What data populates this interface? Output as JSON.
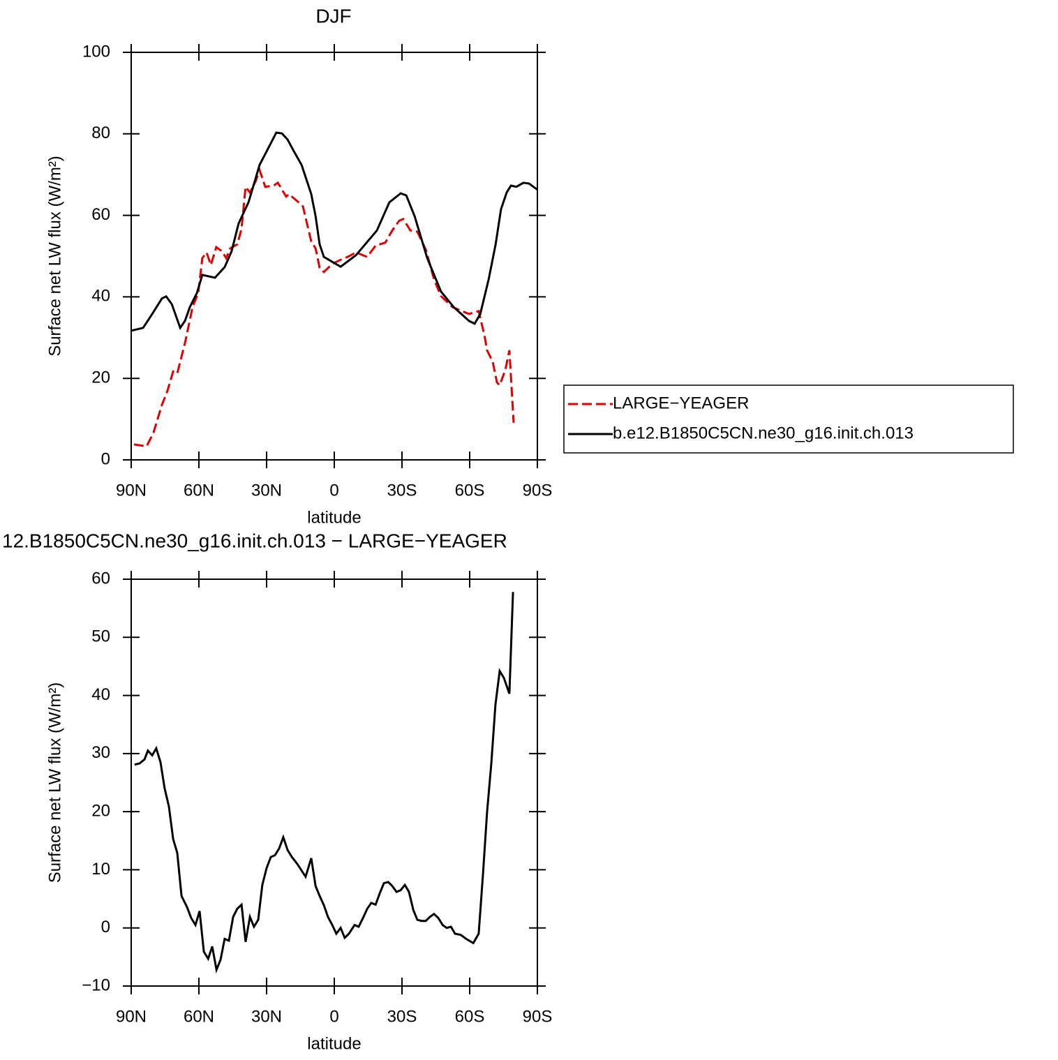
{
  "chart_data": [
    {
      "type": "line",
      "title": "DJF",
      "x_label": "latitude",
      "y_label": "Surface net LW flux (W/m²)",
      "xlim": [
        90,
        -90
      ],
      "xticks": [
        {
          "value": 90,
          "label": "90N"
        },
        {
          "value": 60,
          "label": "60N"
        },
        {
          "value": 30,
          "label": "30N"
        },
        0,
        {
          "value": -30,
          "label": "30S"
        },
        {
          "value": -60,
          "label": "60S"
        },
        {
          "value": -90,
          "label": "90S"
        }
      ],
      "ylim": [
        0,
        100
      ],
      "yticks": [
        0,
        20,
        40,
        60,
        80,
        100
      ],
      "legend": "right",
      "series": [
        {
          "name": "LARGE−YEAGER",
          "color": "#e00000",
          "dashed": true,
          "x": [
            88.8,
            83.2,
            80.1,
            76.4,
            73.9,
            71.4,
            69.6,
            65.9,
            62.8,
            60.3,
            58.5,
            56.6,
            54.7,
            52.3,
            49.8,
            47.9,
            46.1,
            43,
            41.1,
            39.3,
            37.4,
            34.9,
            33.1,
            30.6,
            26.9,
            25,
            23.2,
            21.3,
            20.1,
            16.4,
            13.9,
            10.2,
            8.3,
            6.5,
            4.6,
            0.9,
            -2.8,
            -5.9,
            -9.6,
            -14.6,
            -18.3,
            -22.6,
            -25.7,
            -28.8,
            -30.6,
            -33.7,
            -36.8,
            -40.6,
            -44.2,
            -47.3,
            -52.3,
            -59.7,
            -64,
            -66.5,
            -67.7,
            -70.2,
            -72.1,
            -73.3,
            -75.8,
            -77.6,
            -79.5
          ],
          "values": [
            3.8,
            3.3,
            6.7,
            13.5,
            17,
            21.7,
            21.2,
            29.3,
            37.5,
            40.9,
            49.5,
            50.9,
            47.8,
            52.2,
            51.2,
            49.5,
            51.9,
            52.9,
            56.7,
            67,
            65.6,
            68.3,
            71.1,
            67,
            67.3,
            68,
            66.3,
            64.6,
            65.2,
            63.5,
            62.2,
            53.6,
            51.9,
            47.1,
            46.1,
            48.1,
            49.1,
            49.8,
            50.9,
            49.8,
            52.6,
            53.3,
            56.3,
            58.7,
            59.1,
            56.3,
            56,
            51.5,
            44.3,
            40.2,
            37.5,
            35.8,
            36.5,
            30.7,
            26.9,
            24.1,
            19,
            18.3,
            22.1,
            26.9,
            9.1
          ]
        },
        {
          "name": "b.e12.B1850C5CN.ne30_g16.init.ch.013",
          "color": "#000000",
          "dashed": false,
          "x": [
            90,
            84.7,
            80.7,
            76.4,
            74.5,
            72,
            68.3,
            66.2,
            64,
            60.9,
            58.5,
            55.4,
            52.9,
            48.6,
            45.5,
            42.4,
            38,
            33.1,
            28.1,
            25.7,
            23.2,
            20.7,
            18.2,
            14.5,
            10.2,
            8.3,
            6.5,
            4.6,
            -2.8,
            -9.6,
            -18.9,
            -24.4,
            -29.4,
            -31.9,
            -35.6,
            -41.2,
            -47.3,
            -52.9,
            -59.7,
            -62.2,
            -64.7,
            -68.4,
            -71.5,
            -73.9,
            -76.4,
            -78.3,
            -80.7,
            -83.8,
            -86.3,
            -90
          ],
          "values": [
            31.7,
            32.4,
            35.8,
            39.6,
            40.1,
            38.2,
            32.4,
            34.1,
            37.5,
            40.9,
            45.4,
            45,
            44.7,
            47.3,
            51.2,
            58,
            63.2,
            72.4,
            77.7,
            80.3,
            80.1,
            78.6,
            76,
            72.4,
            65.2,
            59.8,
            52.9,
            49.8,
            47.4,
            50.2,
            56.3,
            63.2,
            65.4,
            64.9,
            59.8,
            49.5,
            41.3,
            37.5,
            34.1,
            33.4,
            35.8,
            44.3,
            52.9,
            61.5,
            65.6,
            67.3,
            67,
            68,
            67.8,
            66.3
          ]
        }
      ]
    },
    {
      "type": "line",
      "title": "12.B1850C5CN.ne30_g16.init.ch.013 − LARGE−YEAGER",
      "x_label": "latitude",
      "y_label": "Surface net LW flux (W/m²)",
      "xlim": [
        90,
        -90
      ],
      "xticks": [
        {
          "value": 90,
          "label": "90N"
        },
        {
          "value": 60,
          "label": "60N"
        },
        {
          "value": 30,
          "label": "30N"
        },
        0,
        {
          "value": -30,
          "label": "30S"
        },
        {
          "value": -60,
          "label": "60S"
        },
        {
          "value": -90,
          "label": "90S"
        }
      ],
      "ylim": [
        -10,
        60
      ],
      "yticks": [
        {
          "value": -10,
          "label": "−10"
        },
        0,
        10,
        20,
        30,
        40,
        50,
        60
      ],
      "series": [
        {
          "color": "#000000",
          "dashed": false,
          "x": [
            88.5,
            86.3,
            84.1,
            82.6,
            80.7,
            78.9,
            77,
            75.2,
            73.3,
            71.4,
            69.6,
            67.7,
            65.3,
            63.4,
            61.5,
            59.7,
            57.8,
            55.9,
            54.1,
            52.2,
            50.4,
            48.6,
            46.7,
            44.8,
            43,
            41.1,
            39.3,
            37.4,
            35.6,
            33.7,
            31.9,
            30,
            28.1,
            26.3,
            24.4,
            22.6,
            20.7,
            18.8,
            16.4,
            12.7,
            10.2,
            8.3,
            6.5,
            4.6,
            2.8,
            0.9,
            -0.9,
            -2.8,
            -4.6,
            -6.5,
            -9,
            -10.8,
            -12.7,
            -14.6,
            -16.4,
            -18.3,
            -20.2,
            -22,
            -23.9,
            -25.7,
            -27.6,
            -29.4,
            -31.3,
            -33.1,
            -35,
            -36.8,
            -38.7,
            -40.5,
            -42.4,
            -44.2,
            -46.1,
            -48,
            -49.8,
            -51.7,
            -53.5,
            -56,
            -58.5,
            -61.6,
            -64,
            -65.9,
            -67.7,
            -69.6,
            -71.4,
            -73.3,
            -75.2,
            -77.6,
            -79.2
          ],
          "values": [
            28.1,
            28.3,
            29,
            30.5,
            29.7,
            30.9,
            28.5,
            24,
            20.9,
            15.3,
            12.9,
            5.5,
            3.6,
            1.7,
            0.5,
            2.9,
            -4.1,
            -5.3,
            -3.2,
            -7.2,
            -5.5,
            -1.9,
            -2.2,
            1.9,
            3.3,
            4,
            -2.4,
            1.9,
            0.2,
            1.4,
            7.4,
            10.3,
            12.2,
            12.5,
            13.7,
            15.6,
            13.4,
            12.2,
            11,
            8.8,
            12,
            7.2,
            5.5,
            3.9,
            1.9,
            0.5,
            -1,
            0,
            -1.7,
            -1,
            0.5,
            0.2,
            1.7,
            3.3,
            4.3,
            4,
            6,
            7.7,
            7.9,
            7.2,
            6.2,
            6.5,
            7.4,
            6.2,
            3.1,
            1.4,
            1.2,
            1.2,
            1.9,
            2.4,
            1.7,
            0.5,
            0,
            0.2,
            -1,
            -1.2,
            -1.9,
            -2.6,
            -1,
            9.3,
            19.9,
            28.3,
            38.4,
            44.2,
            43,
            40.3,
            57.8
          ]
        }
      ]
    }
  ]
}
